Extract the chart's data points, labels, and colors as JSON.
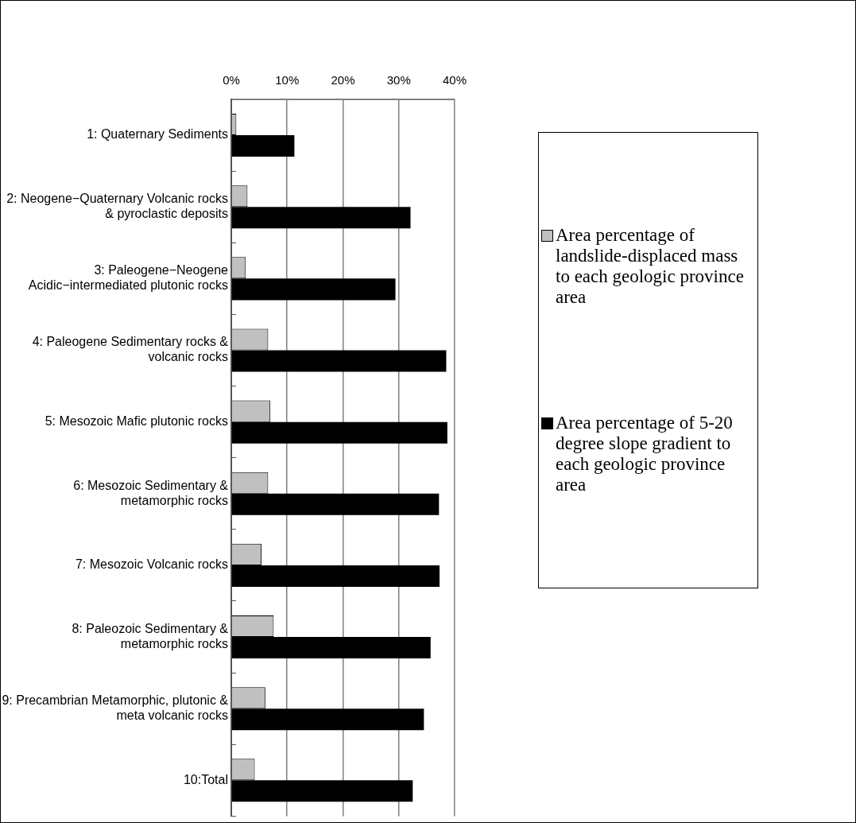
{
  "chart_data": {
    "type": "bar",
    "orientation": "horizontal",
    "categories": [
      "1: Quaternary Sediments",
      "2: Neogene−Quaternary Volcanic rocks & pyroclastic deposits",
      "3: Paleogene−Neogene Acidic−intermediated plutonic rocks",
      "4: Paleogene Sedimentary rocks & volcanic rocks",
      "5: Mesozoic Mafic plutonic rocks",
      "6: Mesozoic Sedimentary & metamorphic rocks",
      "7: Mesozoic Volcanic rocks",
      "8: Paleozoic Sedimentary & metamorphic rocks",
      "9: Precambrian Metamorphic, plutonic & meta volcanic rocks",
      "10:Total"
    ],
    "series": [
      {
        "name": "Area percentage of landslide-displaced mass to each geologic province area",
        "color": "#c0c0c0",
        "values": [
          0.9,
          2.9,
          2.6,
          6.6,
          7.0,
          6.6,
          5.4,
          7.6,
          6.1,
          4.2
        ]
      },
      {
        "name": "Area percentage of 5-20 degree slope gradient to each geologic province area",
        "color": "#000000",
        "values": [
          11.3,
          32.1,
          29.4,
          38.5,
          38.7,
          37.2,
          37.3,
          35.7,
          34.5,
          32.5
        ]
      }
    ],
    "xlim": [
      0,
      40
    ],
    "xticks": [
      {
        "value": 0,
        "label": "0%"
      },
      {
        "value": 10,
        "label": "10%"
      },
      {
        "value": 20,
        "label": "20%"
      },
      {
        "value": 30,
        "label": "30%"
      },
      {
        "value": 40,
        "label": "40%"
      }
    ],
    "grid": "x",
    "legend": "right"
  }
}
